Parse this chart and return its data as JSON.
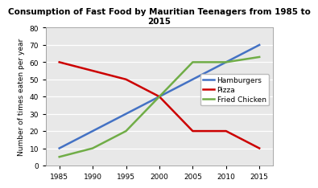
{
  "title": "Consumption of Fast Food by Mauritian Teenagers from 1985 to\n2015",
  "ylabel": "Number of times eaten per year",
  "years": [
    1985,
    1990,
    1995,
    2000,
    2005,
    2010,
    2015
  ],
  "hamburgers": [
    10,
    20,
    30,
    40,
    50,
    60,
    70
  ],
  "pizza": [
    60,
    55,
    50,
    40,
    20,
    20,
    10
  ],
  "fried_chicken": [
    5,
    10,
    20,
    40,
    60,
    60,
    63
  ],
  "hamburgers_color": "#4472c4",
  "pizza_color": "#cc0000",
  "fried_chicken_color": "#70ad47",
  "ylim": [
    0,
    80
  ],
  "xlim": [
    1983,
    2017
  ],
  "xticks": [
    1985,
    1990,
    1995,
    2000,
    2005,
    2010,
    2015
  ],
  "yticks": [
    0,
    10,
    20,
    30,
    40,
    50,
    60,
    70,
    80
  ],
  "legend_labels": [
    "Hamburgers",
    "Pizza",
    "Fried Chicken"
  ],
  "plot_bg_color": "#e8e8e8",
  "grid_color": "#ffffff",
  "linewidth": 1.8,
  "title_fontsize": 7.5,
  "axis_label_fontsize": 6.5,
  "tick_fontsize": 6.5,
  "legend_fontsize": 6.5
}
